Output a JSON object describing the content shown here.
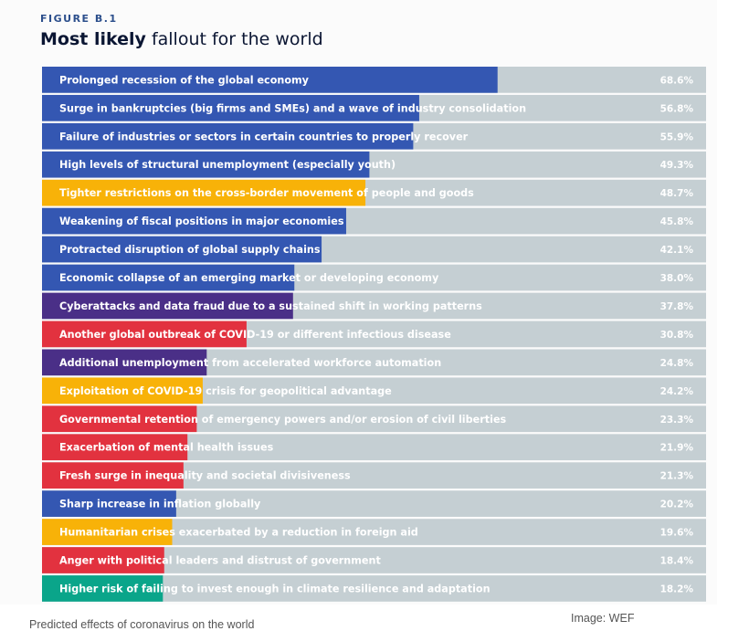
{
  "figure": {
    "label": "FIGURE B.1",
    "title_bold": "Most likely",
    "title_rest": " fallout for the world"
  },
  "caption": "Predicted effects of coronavirus on the world",
  "credit": "Image: WEF",
  "colors": {
    "track": "#c5cfd3",
    "economic": "#3457b2",
    "societal": "#e2323f",
    "geopolitical": "#f8b208",
    "technological": "#4a2f87",
    "environmental": "#0aa58a"
  },
  "chart_data": {
    "type": "bar",
    "orientation": "horizontal",
    "xlim": [
      0,
      100
    ],
    "categories": [
      "Prolonged recession of the global economy",
      "Surge in bankruptcies (big firms and SMEs) and a wave of industry consolidation",
      "Failure of industries or sectors in certain countries to properly recover",
      "High levels of structural unemployment (especially youth)",
      "Tighter restrictions on the cross-border movement of people and goods",
      "Weakening of fiscal positions in major economies",
      "Protracted disruption of global supply chains",
      "Economic collapse of an emerging market or developing economy",
      "Cyberattacks and data fraud due to a sustained shift in working patterns",
      "Another global outbreak of COVID-19 or different infectious disease",
      "Additional unemployment from accelerated workforce automation",
      "Exploitation of COVID-19 crisis for geopolitical advantage",
      "Governmental retention of emergency powers and/or erosion of civil liberties",
      "Exacerbation of mental health issues",
      "Fresh surge in inequality and societal divisiveness",
      "Sharp increase in inflation globally",
      "Humanitarian crises exacerbated by a reduction in foreign aid",
      "Anger with political leaders and distrust of government",
      "Higher risk of failing to invest enough in climate resilience and adaptation"
    ],
    "values": [
      68.6,
      56.8,
      55.9,
      49.3,
      48.7,
      45.8,
      42.1,
      38.0,
      37.8,
      30.8,
      24.8,
      24.2,
      23.3,
      21.9,
      21.3,
      20.2,
      19.6,
      18.4,
      18.2
    ],
    "value_labels": [
      "68.6%",
      "56.8%",
      "55.9%",
      "49.3%",
      "48.7%",
      "45.8%",
      "42.1%",
      "38.0%",
      "37.8%",
      "30.8%",
      "24.8%",
      "24.2%",
      "23.3%",
      "21.9%",
      "21.3%",
      "20.2%",
      "19.6%",
      "18.4%",
      "18.2%"
    ],
    "bar_colors": [
      "#3457b2",
      "#3457b2",
      "#3457b2",
      "#3457b2",
      "#f8b208",
      "#3457b2",
      "#3457b2",
      "#3457b2",
      "#4a2f87",
      "#e2323f",
      "#4a2f87",
      "#f8b208",
      "#e2323f",
      "#e2323f",
      "#e2323f",
      "#3457b2",
      "#f8b208",
      "#e2323f",
      "#0aa58a"
    ]
  }
}
